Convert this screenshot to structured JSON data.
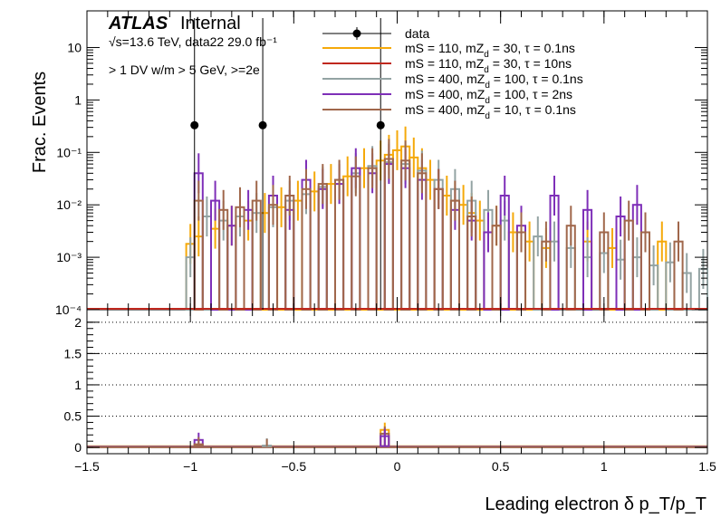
{
  "chart_data": [
    {
      "panel": "top",
      "type": "line",
      "ylabel": "Frac. Events",
      "yscale": "log",
      "ylim": [
        0.0001,
        50
      ],
      "xlim": [
        -1.5,
        1.5
      ],
      "yticks": [
        {
          "label": "10",
          "value": 10
        },
        {
          "label": "1",
          "value": 1
        },
        {
          "label": "10⁻¹",
          "value": 0.1
        },
        {
          "label": "10⁻²",
          "value": 0.01
        },
        {
          "label": "10⁻³",
          "value": 0.001
        },
        {
          "label": "10⁻⁴",
          "value": 0.0001
        }
      ],
      "experiment": "ATLAS",
      "status": "Internal",
      "energy_line": "√s=13.6 TeV, data22 29.0 fb⁻¹",
      "selection_line": "> 1 DV w/m > 5 GeV, >=2e",
      "data": {
        "name": "data",
        "color": "#000000",
        "x": [
          -0.98,
          -0.65,
          -0.08
        ],
        "y": [
          0.33,
          0.33,
          0.33
        ]
      },
      "series": [
        {
          "name": "mS = 110, mZ_d = 30, τ = 0.1ns",
          "legend_main": "mS = 110, mZ",
          "legend_sub": "d",
          "legend_tail": " = 30, τ = 0.1ns",
          "color": "#f5a90a",
          "bins": [
            [
              -1.02,
              0.0018
            ],
            [
              -0.98,
              0.0025
            ],
            [
              -0.9,
              0.0035
            ],
            [
              -0.82,
              0.004
            ],
            [
              -0.74,
              0.005
            ],
            [
              -0.66,
              0.007
            ],
            [
              -0.58,
              0.009
            ],
            [
              -0.5,
              0.012
            ],
            [
              -0.42,
              0.018
            ],
            [
              -0.34,
              0.025
            ],
            [
              -0.26,
              0.035
            ],
            [
              -0.18,
              0.05
            ],
            [
              -0.1,
              0.07
            ],
            [
              -0.06,
              0.09
            ],
            [
              -0.02,
              0.11
            ],
            [
              0.02,
              0.13
            ],
            [
              0.06,
              0.08
            ],
            [
              0.1,
              0.05
            ],
            [
              0.14,
              0.03
            ],
            [
              0.18,
              0.02
            ],
            [
              0.22,
              0.015
            ],
            [
              0.26,
              0.012
            ],
            [
              0.3,
              0.01
            ],
            [
              0.34,
              0.007
            ],
            [
              0.38,
              0.005
            ],
            [
              0.46,
              0.004
            ],
            [
              0.54,
              0.003
            ],
            [
              0.62,
              0.002
            ],
            [
              0.7,
              0.0015
            ],
            [
              0.9,
              0.002
            ],
            [
              1.02,
              0.0015
            ],
            [
              1.26,
              0.002
            ]
          ]
        },
        {
          "name": "mS = 110, mZ_d = 30, τ = 10ns",
          "legend_main": "mS = 110, mZ",
          "legend_sub": "d",
          "legend_tail": " = 30, τ = 10ns",
          "color": "#c0281e",
          "bins": []
        },
        {
          "name": "mS = 400, mZ_d = 100, τ = 0.1ns",
          "legend_main": "mS = 400, mZ",
          "legend_sub": "d",
          "legend_tail": " = 100, τ = 0.1ns",
          "color": "#93a3a3",
          "bins": [
            [
              -1.02,
              0.001
            ],
            [
              -0.94,
              0.006
            ],
            [
              -0.86,
              0.005
            ],
            [
              -0.78,
              0.006
            ],
            [
              -0.7,
              0.007
            ],
            [
              -0.62,
              0.009
            ],
            [
              -0.54,
              0.012
            ],
            [
              -0.46,
              0.016
            ],
            [
              -0.38,
              0.022
            ],
            [
              -0.3,
              0.03
            ],
            [
              -0.22,
              0.04
            ],
            [
              -0.14,
              0.055
            ],
            [
              -0.06,
              0.065
            ],
            [
              0.02,
              0.06
            ],
            [
              0.1,
              0.045
            ],
            [
              0.18,
              0.03
            ],
            [
              0.26,
              0.02
            ],
            [
              0.34,
              0.012
            ],
            [
              0.42,
              0.008
            ],
            [
              0.5,
              0.005
            ],
            [
              0.58,
              0.003
            ],
            [
              0.66,
              0.0025
            ],
            [
              0.74,
              0.002
            ],
            [
              0.82,
              0.0015
            ],
            [
              0.9,
              0.001
            ],
            [
              0.98,
              0.0012
            ],
            [
              1.06,
              0.0009
            ],
            [
              1.14,
              0.001
            ],
            [
              1.22,
              0.0007
            ],
            [
              1.3,
              0.0008
            ],
            [
              1.38,
              0.0005
            ],
            [
              1.46,
              0.0006
            ]
          ]
        },
        {
          "name": "mS = 400, mZ_d = 100, τ = 2ns",
          "legend_main": "mS = 400, mZ",
          "legend_sub": "d",
          "legend_tail": " = 100, τ = 2ns",
          "color": "#7e2fb8",
          "bins": [
            [
              -0.98,
              0.04
            ],
            [
              -0.9,
              0.012
            ],
            [
              -0.82,
              0.004
            ],
            [
              -0.74,
              0.008
            ],
            [
              -0.62,
              0.015
            ],
            [
              -0.54,
              0.008
            ],
            [
              -0.46,
              0.03
            ],
            [
              -0.38,
              0.02
            ],
            [
              -0.3,
              0.025
            ],
            [
              -0.22,
              0.05
            ],
            [
              -0.14,
              0.04
            ],
            [
              -0.06,
              0.06
            ],
            [
              0.02,
              0.05
            ],
            [
              0.1,
              0.03
            ],
            [
              0.18,
              0.02
            ],
            [
              0.26,
              0.008
            ],
            [
              0.34,
              0.005
            ],
            [
              0.42,
              0.003
            ],
            [
              0.5,
              0.015
            ],
            [
              0.58,
              0.004
            ],
            [
              0.74,
              0.015
            ],
            [
              0.9,
              0.008
            ],
            [
              1.06,
              0.006
            ],
            [
              1.14,
              0.01
            ]
          ]
        },
        {
          "name": "mS = 400, mZ_d = 10, τ = 0.1ns",
          "legend_main": "mS = 400, mZ",
          "legend_sub": "d",
          "legend_tail": " = 10, τ = 0.1ns",
          "color": "#a0674b",
          "bins": [
            [
              -0.98,
              0.012
            ],
            [
              -0.86,
              0.008
            ],
            [
              -0.78,
              0.009
            ],
            [
              -0.7,
              0.012
            ],
            [
              -0.62,
              0.01
            ],
            [
              -0.54,
              0.015
            ],
            [
              -0.46,
              0.02
            ],
            [
              -0.38,
              0.025
            ],
            [
              -0.3,
              0.03
            ],
            [
              -0.22,
              0.035
            ],
            [
              -0.14,
              0.05
            ],
            [
              -0.06,
              0.075
            ],
            [
              0.02,
              0.07
            ],
            [
              0.1,
              0.04
            ],
            [
              0.18,
              0.02
            ],
            [
              0.26,
              0.012
            ],
            [
              0.34,
              0.006
            ],
            [
              0.46,
              0.004
            ],
            [
              0.58,
              0.003
            ],
            [
              0.7,
              0.002
            ],
            [
              0.82,
              0.004
            ],
            [
              0.98,
              0.003
            ],
            [
              1.1,
              0.005
            ],
            [
              1.18,
              0.003
            ],
            [
              1.34,
              0.002
            ]
          ]
        }
      ]
    },
    {
      "panel": "ratio",
      "type": "line",
      "xlabel": "Leading electron δ p_T/p_T",
      "xlim": [
        -1.5,
        1.5
      ],
      "ylim": [
        -0.1,
        2.2
      ],
      "xticks": [
        {
          "label": "−1.5",
          "value": -1.5
        },
        {
          "label": "−1",
          "value": -1
        },
        {
          "label": "−0.5",
          "value": -0.5
        },
        {
          "label": "0",
          "value": 0
        },
        {
          "label": "0.5",
          "value": 0.5
        },
        {
          "label": "1",
          "value": 1
        },
        {
          "label": "1.5",
          "value": 1.5
        }
      ],
      "yticks": [
        {
          "label": "2",
          "value": 2
        },
        {
          "label": "1.5",
          "value": 1.5
        },
        {
          "label": "1",
          "value": 1
        },
        {
          "label": "0.5",
          "value": 0.5
        },
        {
          "label": "0",
          "value": 0
        }
      ],
      "gridlines": [
        0.5,
        1,
        1.5,
        2
      ],
      "spikes": [
        {
          "series": 3,
          "x": -0.98,
          "y": 0.12
        },
        {
          "series": 4,
          "x": -0.98,
          "y": 0.05
        },
        {
          "series": 2,
          "x": -0.65,
          "y": 0.03
        },
        {
          "series": 4,
          "x": -0.65,
          "y": 0.02
        },
        {
          "series": 0,
          "x": -0.08,
          "y": 0.28
        },
        {
          "series": 4,
          "x": -0.08,
          "y": 0.22
        },
        {
          "series": 3,
          "x": -0.08,
          "y": 0.18
        }
      ]
    }
  ]
}
